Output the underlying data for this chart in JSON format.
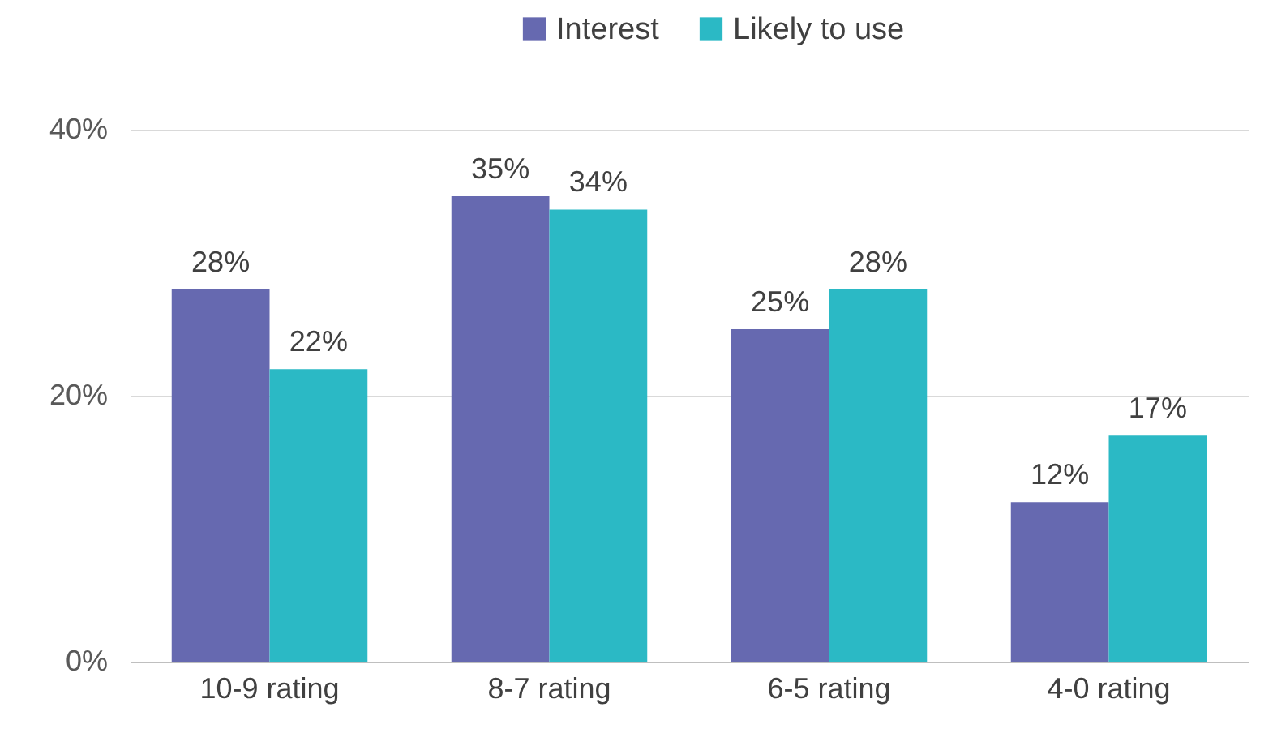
{
  "chart_data": {
    "type": "bar",
    "categories": [
      "10-9 rating",
      "8-7 rating",
      "6-5 rating",
      "4-0 rating"
    ],
    "series": [
      {
        "name": "Interest",
        "color": "#6669b0",
        "values": [
          28,
          35,
          25,
          12
        ],
        "value_labels": [
          "28%",
          "35%",
          "25%",
          "12%"
        ]
      },
      {
        "name": "Likely to use",
        "color": "#2bb9c5",
        "values": [
          22,
          34,
          28,
          17
        ],
        "value_labels": [
          "22%",
          "34%",
          "28%",
          "17%"
        ]
      }
    ],
    "ylim": [
      0,
      40
    ],
    "yticks": [
      {
        "value": 0,
        "label": "0%"
      },
      {
        "value": 20,
        "label": "20%"
      },
      {
        "value": 40,
        "label": "40%"
      }
    ],
    "grid": "y",
    "legend": "top"
  }
}
